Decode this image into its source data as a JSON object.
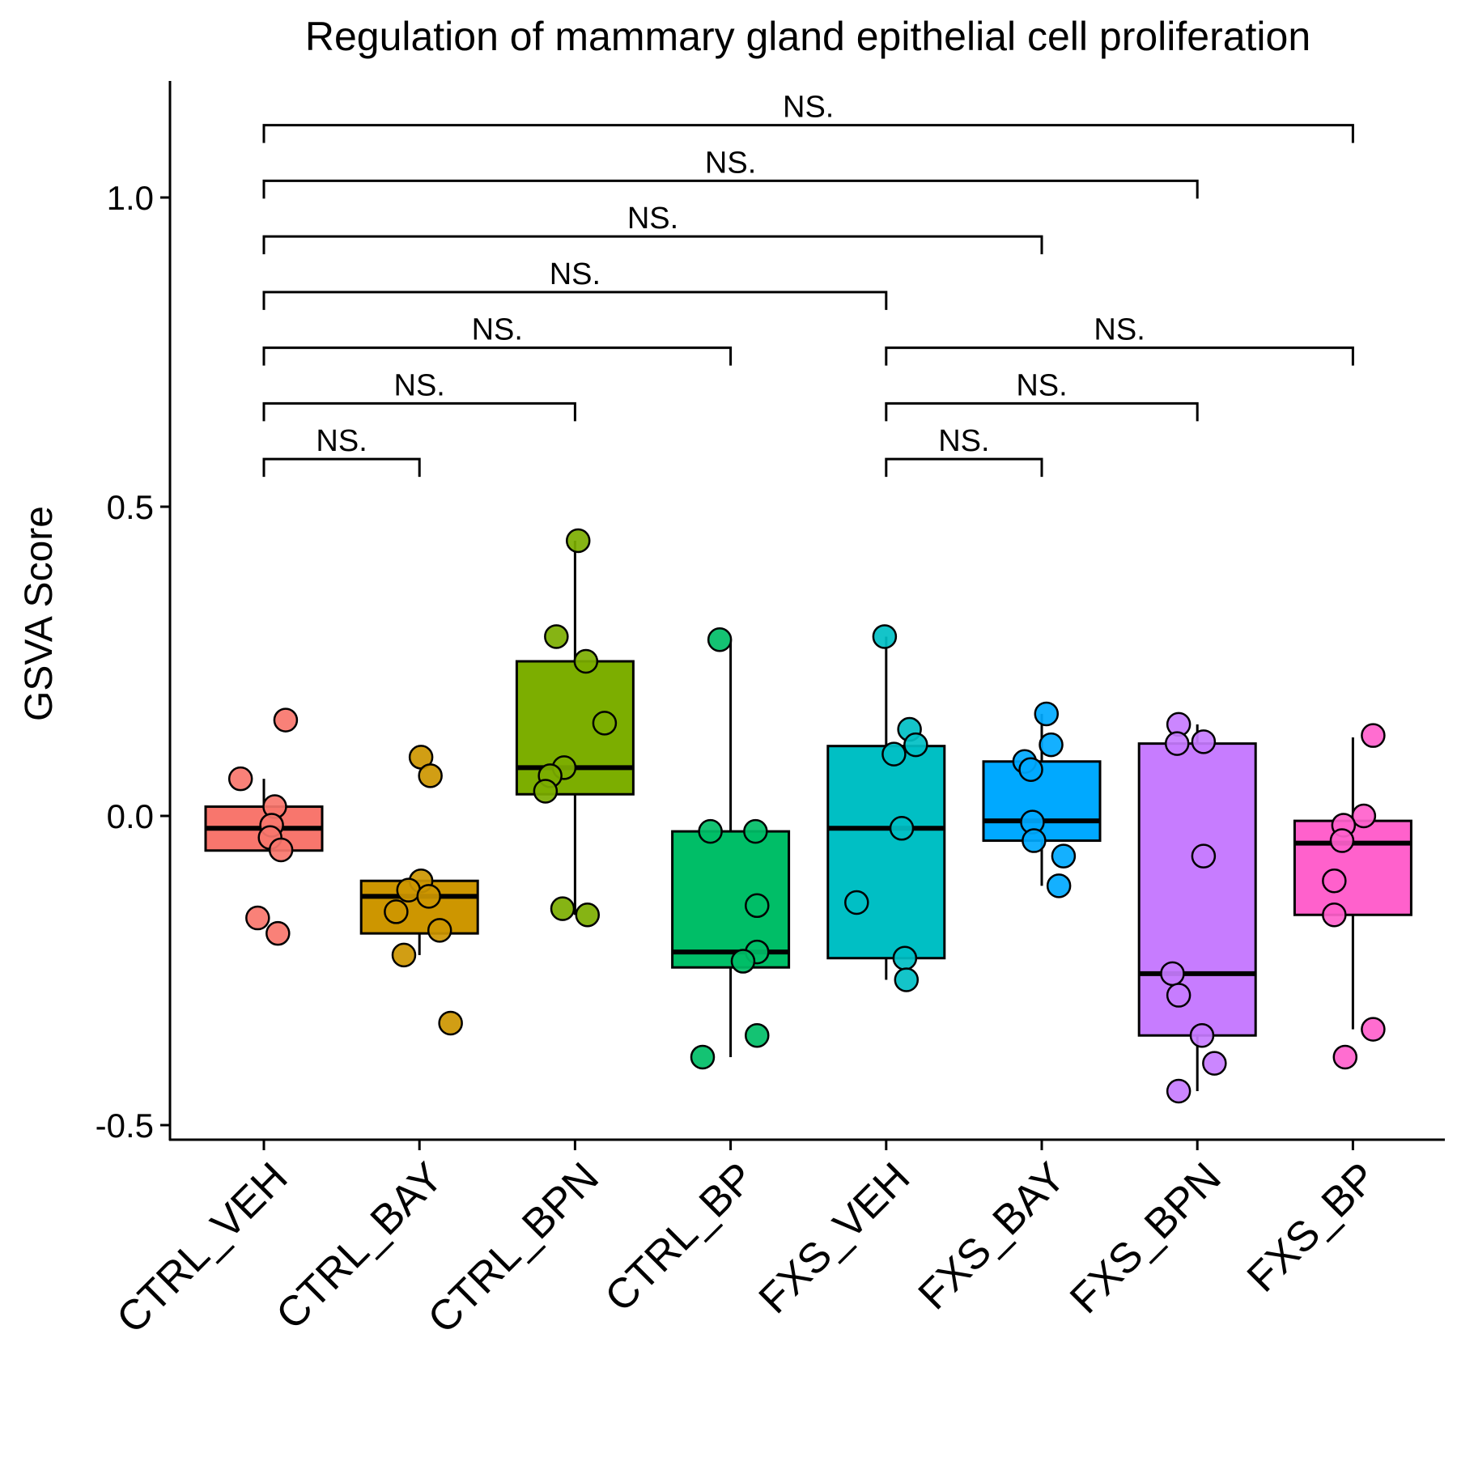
{
  "chart_data": {
    "type": "box",
    "title": "Regulation of mammary gland epithelial cell proliferation",
    "xlabel": "",
    "ylabel": "GSVA Score",
    "ylim": [
      -0.52,
      1.18
    ],
    "yticks": [
      -0.5,
      0.0,
      0.5,
      1.0
    ],
    "ytick_labels": [
      "-0.5",
      "0.0",
      "0.5",
      "1.0"
    ],
    "grid": false,
    "legend": "none",
    "categories": [
      "CTRL_VEH",
      "CTRL_BAY",
      "CTRL_BPN",
      "CTRL_BP",
      "FXS_VEH",
      "FXS_BAY",
      "FXS_BPN",
      "FXS_BP"
    ],
    "colors": [
      "#F8766D",
      "#CD9600",
      "#7CAE00",
      "#00BE67",
      "#00BFC4",
      "#00A9FF",
      "#C77CFF",
      "#FF61CC"
    ],
    "boxes": [
      {
        "group": "CTRL_VEH",
        "whisker_low": -0.056,
        "q1": -0.056,
        "median": -0.02,
        "q3": 0.015,
        "whisker_high": 0.06
      },
      {
        "group": "CTRL_BAY",
        "whisker_low": -0.225,
        "q1": -0.19,
        "median": -0.13,
        "q3": -0.105,
        "whisker_high": -0.105
      },
      {
        "group": "CTRL_BPN",
        "whisker_low": -0.16,
        "q1": 0.035,
        "median": 0.078,
        "q3": 0.25,
        "whisker_high": 0.445
      },
      {
        "group": "CTRL_BP",
        "whisker_low": -0.39,
        "q1": -0.245,
        "median": -0.22,
        "q3": -0.025,
        "whisker_high": 0.285
      },
      {
        "group": "FXS_VEH",
        "whisker_low": -0.265,
        "q1": -0.23,
        "median": -0.02,
        "q3": 0.113,
        "whisker_high": 0.29
      },
      {
        "group": "FXS_BAY",
        "whisker_low": -0.113,
        "q1": -0.04,
        "median": -0.008,
        "q3": 0.088,
        "whisker_high": 0.165
      },
      {
        "group": "FXS_BPN",
        "whisker_low": -0.445,
        "q1": -0.355,
        "median": -0.255,
        "q3": 0.117,
        "whisker_high": 0.148
      },
      {
        "group": "FXS_BP",
        "whisker_low": -0.345,
        "q1": -0.16,
        "median": -0.044,
        "q3": -0.008,
        "whisker_high": 0.127
      }
    ],
    "points": [
      {
        "group": "CTRL_VEH",
        "values": [
          0.155,
          0.06,
          0.015,
          -0.015,
          -0.035,
          -0.055,
          -0.165,
          -0.19
        ],
        "jitter": [
          0.14,
          -0.15,
          0.07,
          0.05,
          0.04,
          0.11,
          -0.04,
          0.09
        ]
      },
      {
        "group": "CTRL_BAY",
        "values": [
          0.095,
          0.065,
          -0.105,
          -0.12,
          -0.13,
          -0.155,
          -0.185,
          -0.225,
          -0.335
        ],
        "jitter": [
          0.01,
          0.07,
          0.01,
          -0.07,
          0.06,
          -0.15,
          0.13,
          -0.1,
          0.2
        ]
      },
      {
        "group": "CTRL_BPN",
        "values": [
          0.445,
          0.29,
          0.25,
          0.15,
          0.078,
          0.065,
          0.04,
          -0.15,
          -0.16
        ],
        "jitter": [
          0.02,
          -0.12,
          0.07,
          0.19,
          -0.07,
          -0.16,
          -0.19,
          -0.08,
          0.08
        ]
      },
      {
        "group": "CTRL_BP",
        "values": [
          0.285,
          -0.025,
          -0.025,
          -0.145,
          -0.22,
          -0.235,
          -0.355,
          -0.39
        ],
        "jitter": [
          -0.07,
          -0.13,
          0.16,
          0.17,
          0.17,
          0.08,
          0.17,
          -0.18
        ]
      },
      {
        "group": "FXS_VEH",
        "values": [
          0.29,
          0.14,
          0.115,
          0.1,
          -0.02,
          -0.14,
          -0.23,
          -0.265
        ],
        "jitter": [
          -0.01,
          0.15,
          0.19,
          0.05,
          0.1,
          -0.19,
          0.12,
          0.13
        ]
      },
      {
        "group": "FXS_BAY",
        "values": [
          0.165,
          0.115,
          0.088,
          0.075,
          -0.01,
          -0.04,
          -0.065,
          -0.113
        ],
        "jitter": [
          0.03,
          0.06,
          -0.11,
          -0.07,
          -0.06,
          -0.05,
          0.14,
          0.11
        ]
      },
      {
        "group": "FXS_BPN",
        "values": [
          0.148,
          0.12,
          0.117,
          -0.065,
          -0.255,
          -0.29,
          -0.355,
          -0.4,
          -0.445
        ],
        "jitter": [
          -0.12,
          0.04,
          -0.13,
          0.04,
          -0.16,
          -0.12,
          0.03,
          0.11,
          -0.12
        ]
      },
      {
        "group": "FXS_BP",
        "values": [
          0.13,
          0.0,
          -0.015,
          -0.04,
          -0.105,
          -0.16,
          -0.345,
          -0.39
        ],
        "jitter": [
          0.13,
          0.07,
          -0.06,
          -0.07,
          -0.12,
          -0.12,
          0.13,
          -0.05
        ]
      }
    ],
    "comparisons": [
      {
        "from": "CTRL_VEH",
        "to": "CTRL_BAY",
        "y": 0.577,
        "label": "NS."
      },
      {
        "from": "CTRL_VEH",
        "to": "CTRL_BPN",
        "y": 0.667,
        "label": "NS."
      },
      {
        "from": "CTRL_VEH",
        "to": "CTRL_BP",
        "y": 0.757,
        "label": "NS."
      },
      {
        "from": "CTRL_VEH",
        "to": "FXS_VEH",
        "y": 0.847,
        "label": "NS."
      },
      {
        "from": "CTRL_VEH",
        "to": "FXS_BAY",
        "y": 0.937,
        "label": "NS."
      },
      {
        "from": "CTRL_VEH",
        "to": "FXS_BPN",
        "y": 1.027,
        "label": "NS."
      },
      {
        "from": "CTRL_VEH",
        "to": "FXS_BP",
        "y": 1.117,
        "label": "NS."
      },
      {
        "from": "FXS_VEH",
        "to": "FXS_BAY",
        "y": 0.577,
        "label": "NS."
      },
      {
        "from": "FXS_VEH",
        "to": "FXS_BPN",
        "y": 0.667,
        "label": "NS."
      },
      {
        "from": "FXS_VEH",
        "to": "FXS_BP",
        "y": 0.757,
        "label": "NS."
      }
    ]
  }
}
